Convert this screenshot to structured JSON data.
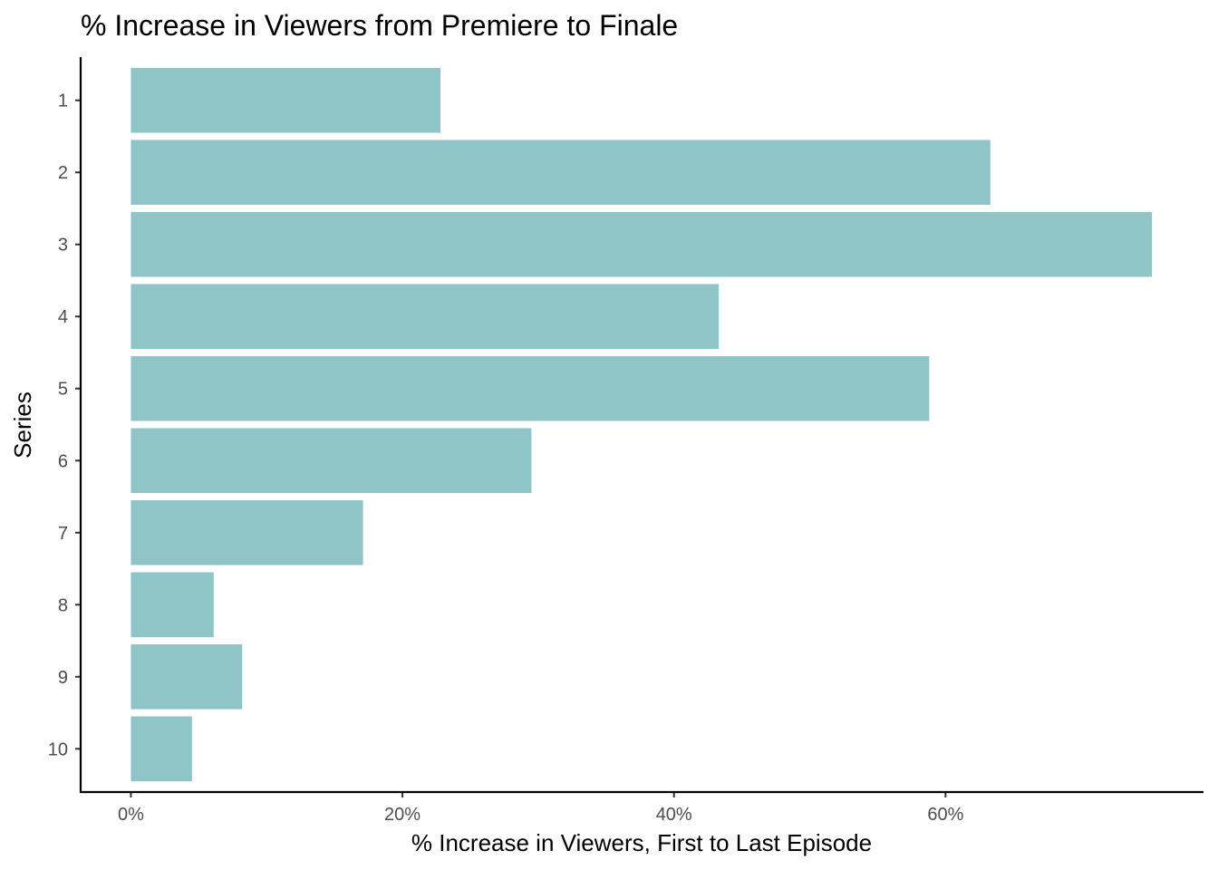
{
  "chart_data": {
    "type": "bar",
    "orientation": "horizontal",
    "title": "% Increase in Viewers from Premiere to Finale",
    "xlabel": "% Increase in Viewers, First to Last Episode",
    "ylabel": "Series",
    "categories": [
      "1",
      "2",
      "3",
      "4",
      "5",
      "6",
      "7",
      "8",
      "9",
      "10"
    ],
    "values": [
      22.8,
      63.3,
      75.2,
      43.3,
      58.8,
      29.5,
      17.1,
      6.1,
      8.2,
      4.5
    ],
    "x_ticks": [
      0,
      20,
      40,
      60
    ],
    "x_tick_labels": [
      "0%",
      "20%",
      "40%",
      "60%"
    ],
    "xlim": [
      -3.7,
      79.0
    ],
    "bar_color": "#8FC5C6",
    "grid": false,
    "legend": "none"
  }
}
